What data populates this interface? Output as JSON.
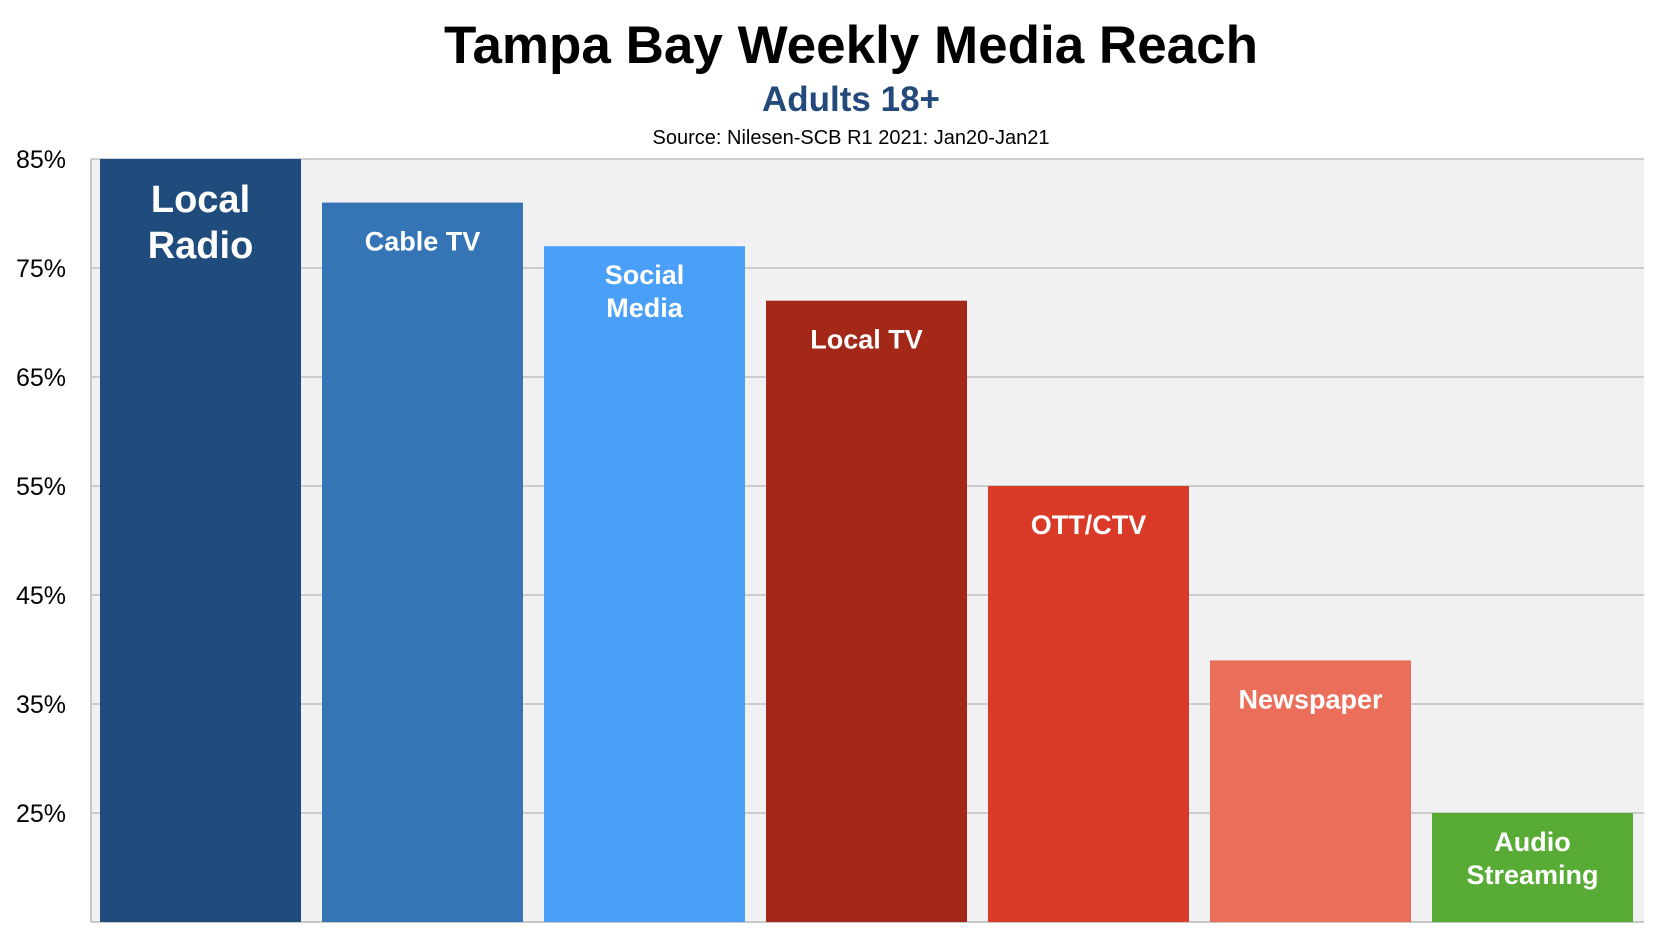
{
  "chart_data": {
    "type": "bar",
    "title": "Tampa Bay Weekly Media Reach",
    "subtitle": "Adults 18+",
    "source": "Source: Nilesen-SCB R1 2021: Jan20-Jan21",
    "xlabel": "",
    "ylabel": "",
    "ylim": [
      15,
      85
    ],
    "yticks": [
      25,
      35,
      45,
      55,
      65,
      75,
      85
    ],
    "ytick_labels": [
      "25%",
      "35%",
      "45%",
      "55%",
      "65%",
      "75%",
      "85%"
    ],
    "grid": true,
    "categories": [
      {
        "label": [
          "Local",
          "Radio"
        ],
        "value": 85,
        "color": "#1F4C7C"
      },
      {
        "label": [
          "Cable TV"
        ],
        "value": 81,
        "color": "#3575B5"
      },
      {
        "label": [
          "Social",
          "Media"
        ],
        "value": 77,
        "color": "#4AA0F8"
      },
      {
        "label": [
          "Local TV"
        ],
        "value": 72,
        "color": "#A32818"
      },
      {
        "label": [
          "OTT/CTV"
        ],
        "value": 55,
        "color": "#D93B28"
      },
      {
        "label": [
          "Newspaper"
        ],
        "value": 39,
        "color": "#EB6E5A"
      },
      {
        "label": [
          "Audio",
          "Streaming"
        ],
        "value": 25,
        "color": "#58AC35"
      }
    ],
    "colors": {
      "title": "#000000",
      "subtitle": "#234A7A",
      "plot_background": "#F1F0F3",
      "grid": "#C0C0C0"
    }
  }
}
